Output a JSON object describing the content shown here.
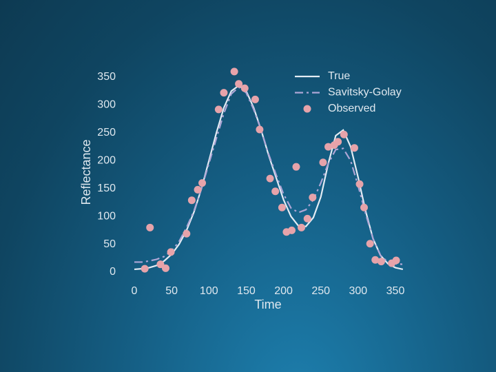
{
  "chart_data": {
    "type": "line",
    "xlabel": "Time",
    "ylabel": "Reflectance",
    "xlim": [
      -10,
      370
    ],
    "ylim": [
      -5,
      365
    ],
    "xticks": [
      0,
      50,
      100,
      150,
      200,
      250,
      300,
      350
    ],
    "yticks": [
      0,
      50,
      100,
      150,
      200,
      250,
      300,
      350
    ],
    "grid": false,
    "legend": "upper right",
    "series": [
      {
        "name": "True",
        "color": "#e3ecf4",
        "style": "solid",
        "x": [
          0,
          10,
          20,
          30,
          40,
          50,
          60,
          70,
          80,
          90,
          100,
          110,
          120,
          130,
          140,
          150,
          160,
          170,
          180,
          190,
          200,
          210,
          220,
          230,
          240,
          250,
          260,
          270,
          280,
          290,
          300,
          310,
          320,
          330,
          340,
          350,
          360
        ],
        "values": [
          5,
          6,
          8,
          12,
          20,
          32,
          50,
          75,
          108,
          150,
          200,
          250,
          295,
          325,
          335,
          325,
          295,
          255,
          210,
          170,
          130,
          100,
          83,
          82,
          98,
          135,
          195,
          245,
          255,
          225,
          170,
          110,
          60,
          30,
          15,
          8,
          5
        ]
      },
      {
        "name": "Savitsky-Golay",
        "color": "#aea6d6",
        "style": "dashdot",
        "x": [
          0,
          10,
          20,
          30,
          40,
          50,
          60,
          70,
          80,
          90,
          100,
          110,
          120,
          130,
          140,
          150,
          160,
          170,
          180,
          190,
          200,
          210,
          220,
          230,
          240,
          250,
          260,
          270,
          280,
          290,
          300,
          310,
          320,
          330,
          340,
          350,
          360
        ],
        "values": [
          18,
          18,
          20,
          23,
          28,
          38,
          55,
          80,
          110,
          150,
          195,
          240,
          285,
          320,
          332,
          322,
          292,
          255,
          212,
          175,
          140,
          115,
          107,
          112,
          130,
          160,
          195,
          220,
          222,
          200,
          155,
          105,
          60,
          30,
          18,
          15,
          14
        ]
      },
      {
        "name": "Observed",
        "color": "#e6a3aa",
        "style": "markers",
        "x": [
          14,
          21,
          35,
          42,
          49,
          70,
          77,
          85,
          91,
          113,
          120,
          134,
          140,
          148,
          162,
          168,
          182,
          189,
          198,
          204,
          211,
          217,
          224,
          232,
          239,
          253,
          260,
          268,
          273,
          281,
          295,
          302,
          308,
          316,
          323,
          331,
          345,
          351
        ],
        "values": [
          6,
          80,
          14,
          7,
          36,
          69,
          129,
          148,
          160,
          292,
          322,
          360,
          338,
          330,
          310,
          256,
          168,
          145,
          116,
          72,
          75,
          189,
          80,
          96,
          134,
          197,
          225,
          228,
          234,
          247,
          223,
          158,
          116,
          51,
          22,
          19,
          16,
          21
        ]
      }
    ]
  }
}
